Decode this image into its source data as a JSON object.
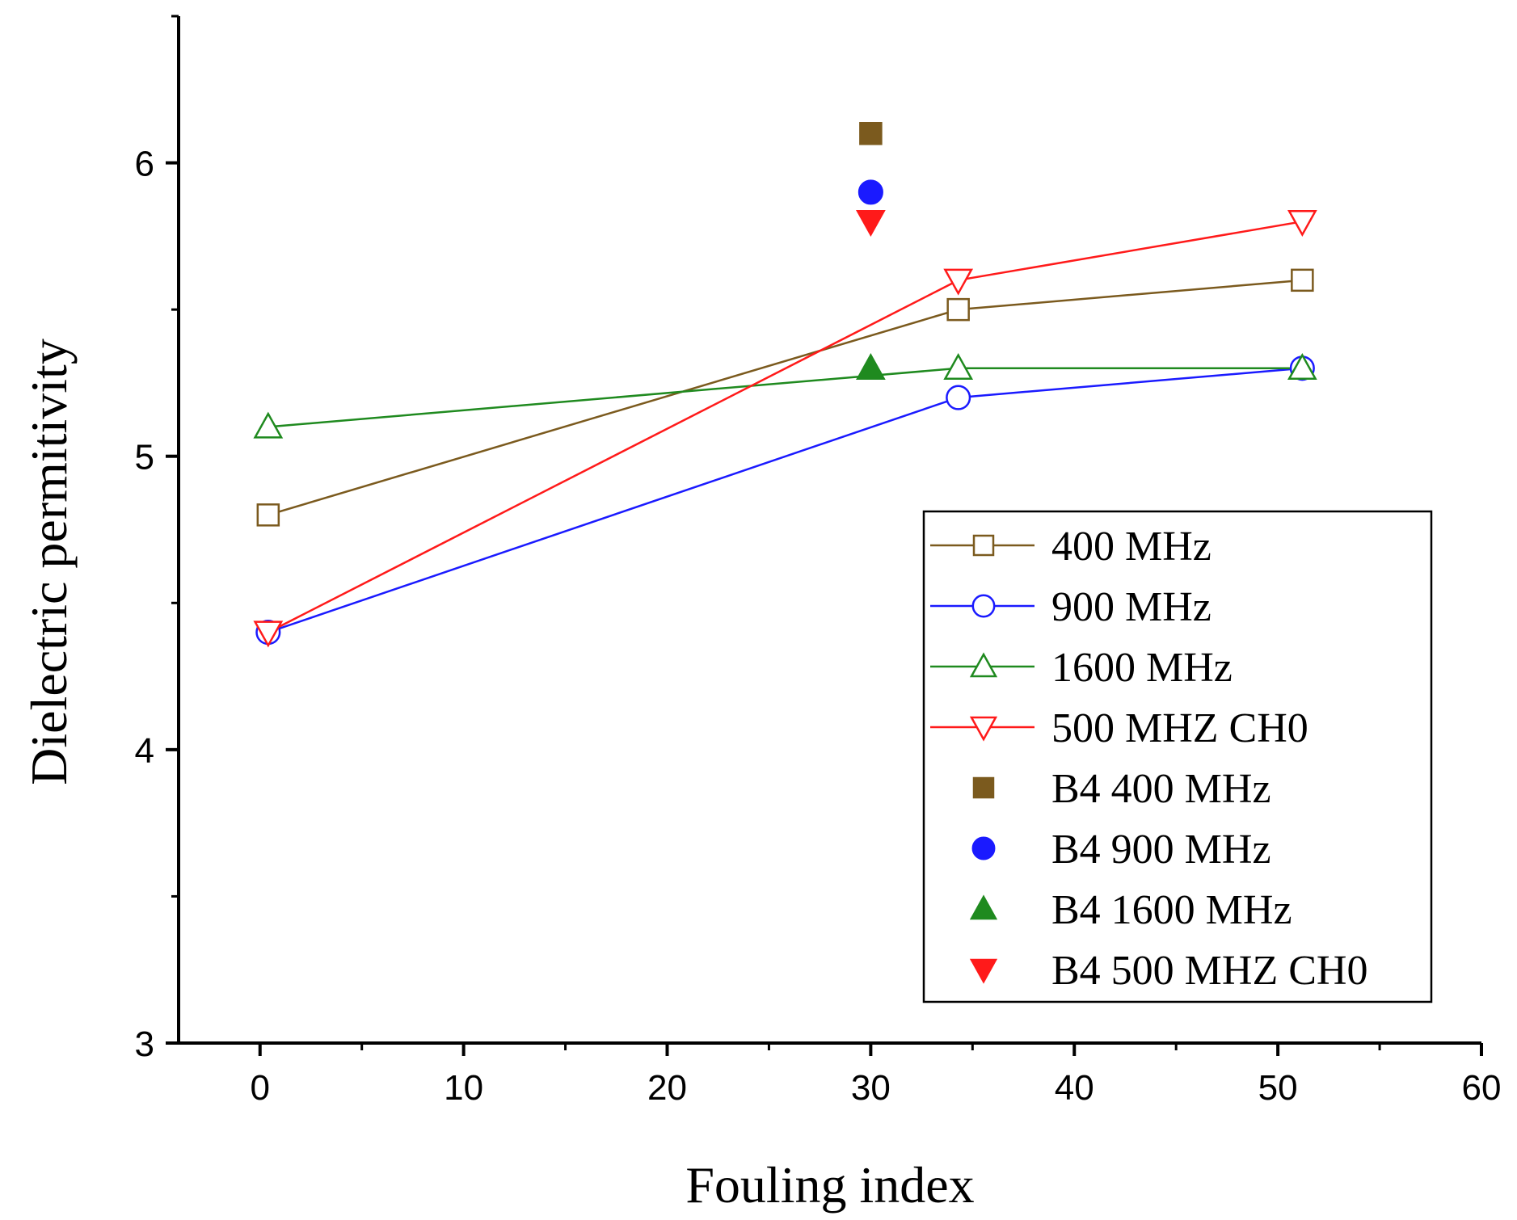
{
  "chart_data": {
    "type": "scatter",
    "title": "",
    "xlabel": "Fouling index",
    "ylabel": "Dielectric permitivity",
    "xlim": [
      -4,
      60
    ],
    "ylim": [
      3,
      6.5
    ],
    "xticks": [
      0,
      10,
      20,
      30,
      40,
      50,
      60
    ],
    "xtick_labels": [
      "0",
      "10",
      "20",
      "30",
      "40",
      "50",
      "60"
    ],
    "yticks": [
      3,
      4,
      5,
      6
    ],
    "ytick_labels": [
      "3",
      "4",
      "5",
      "6"
    ],
    "grid": false,
    "legend_position": "bottom-right",
    "series": [
      {
        "name": "400 MHz",
        "color": "#7b5a1e",
        "marker": "square",
        "filled": false,
        "line": true,
        "x": [
          0.4,
          34.3,
          51.2
        ],
        "y": [
          4.8,
          5.5,
          5.6
        ]
      },
      {
        "name": "900 MHz",
        "color": "#1a1aff",
        "marker": "circle",
        "filled": false,
        "line": true,
        "x": [
          0.4,
          34.3,
          51.2
        ],
        "y": [
          4.4,
          5.2,
          5.3
        ]
      },
      {
        "name": "1600 MHz",
        "color": "#1f8a1f",
        "marker": "triangle-up",
        "filled": false,
        "line": true,
        "x": [
          0.4,
          34.3,
          51.2
        ],
        "y": [
          5.1,
          5.3,
          5.3
        ]
      },
      {
        "name": "500 MHZ CH0",
        "color": "#ff1a1a",
        "marker": "triangle-down",
        "filled": false,
        "line": true,
        "x": [
          0.4,
          34.3,
          51.2
        ],
        "y": [
          4.4,
          5.6,
          5.8
        ]
      },
      {
        "name": "B4 400 MHz",
        "color": "#7b5a1e",
        "marker": "square",
        "filled": true,
        "line": false,
        "x": [
          30
        ],
        "y": [
          6.1
        ]
      },
      {
        "name": "B4 900 MHz",
        "color": "#1a1aff",
        "marker": "circle",
        "filled": true,
        "line": false,
        "x": [
          30
        ],
        "y": [
          5.9
        ]
      },
      {
        "name": "B4 1600 MHz",
        "color": "#1f8a1f",
        "marker": "triangle-up",
        "filled": true,
        "line": false,
        "x": [
          30
        ],
        "y": [
          5.3
        ]
      },
      {
        "name": "B4 500 MHZ CH0",
        "color": "#ff1a1a",
        "marker": "triangle-down",
        "filled": true,
        "line": false,
        "x": [
          30
        ],
        "y": [
          5.8
        ]
      }
    ]
  }
}
